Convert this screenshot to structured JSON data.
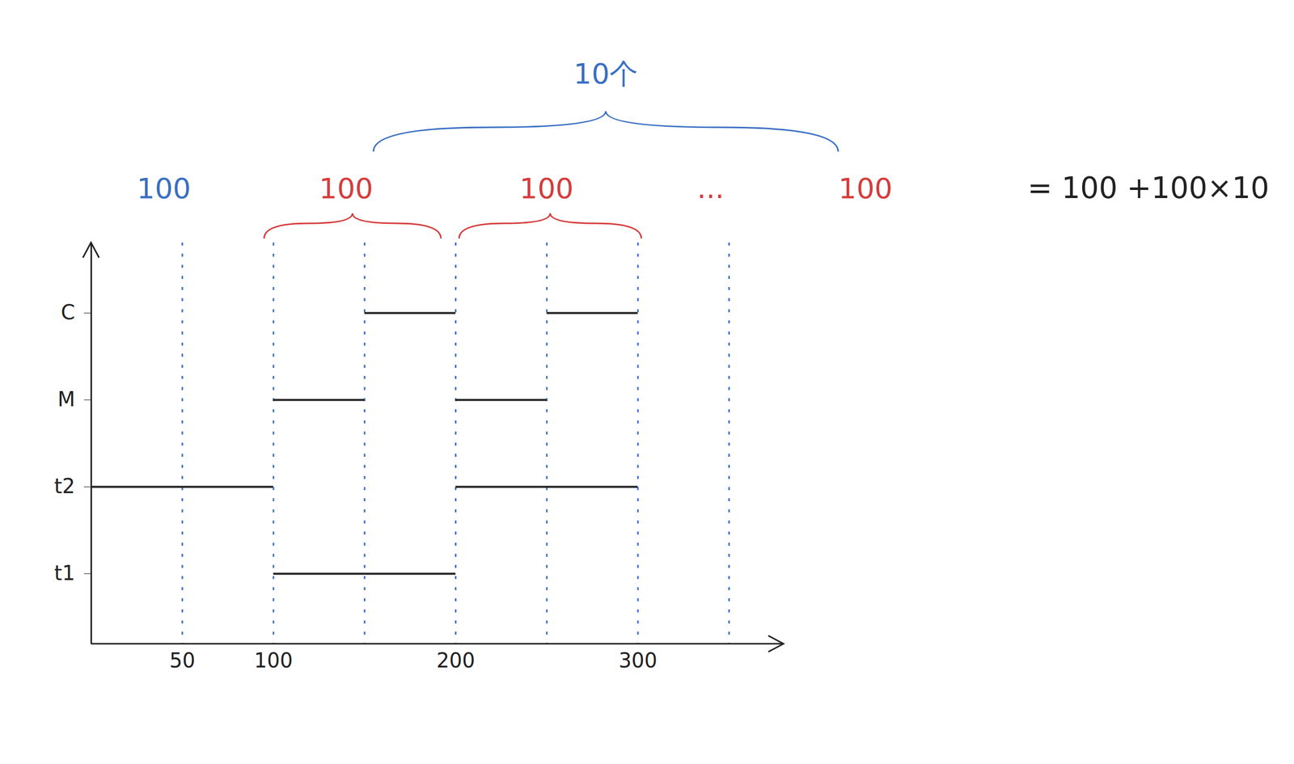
{
  "chart_data": {
    "type": "timeline",
    "categories": [
      "t1",
      "t2",
      "M",
      "C"
    ],
    "segments": [
      {
        "category": "t2",
        "start": 0,
        "end": 100
      },
      {
        "category": "M",
        "start": 100,
        "end": 150
      },
      {
        "category": "C",
        "start": 150,
        "end": 200
      },
      {
        "category": "t1",
        "start": 100,
        "end": 200
      },
      {
        "category": "M",
        "start": 200,
        "end": 250
      },
      {
        "category": "C",
        "start": 250,
        "end": 300
      },
      {
        "category": "t2",
        "start": 200,
        "end": 300
      }
    ],
    "color": "#222222",
    "xlim": [
      0,
      380
    ],
    "xticks": [
      50,
      100,
      200,
      300
    ],
    "dashed_lines": [
      50,
      100,
      150,
      200,
      250,
      300,
      350
    ],
    "dashed_color": "#3a6fc4",
    "annotations": [
      {
        "text": "100",
        "x": 40,
        "color": "#3a6fc4"
      },
      {
        "text": "100",
        "x": 140,
        "color": "#d63c3c"
      },
      {
        "text": "100",
        "x": 250,
        "color": "#d63c3c"
      },
      {
        "text": "...",
        "x": 340,
        "color": "#d63c3c"
      },
      {
        "text": "100",
        "x": 425,
        "color": "#d63c3c"
      }
    ],
    "braces": [
      {
        "from": 95,
        "to": 192,
        "color": "#d63c3c"
      },
      {
        "from": 202,
        "to": 302,
        "color": "#d63c3c"
      }
    ],
    "outer_brace": {
      "text": "10个",
      "from": 155,
      "to": 410,
      "color": "#3a6fc4"
    },
    "equation": {
      "text": "= 100 +100×10",
      "x": 514
    }
  }
}
